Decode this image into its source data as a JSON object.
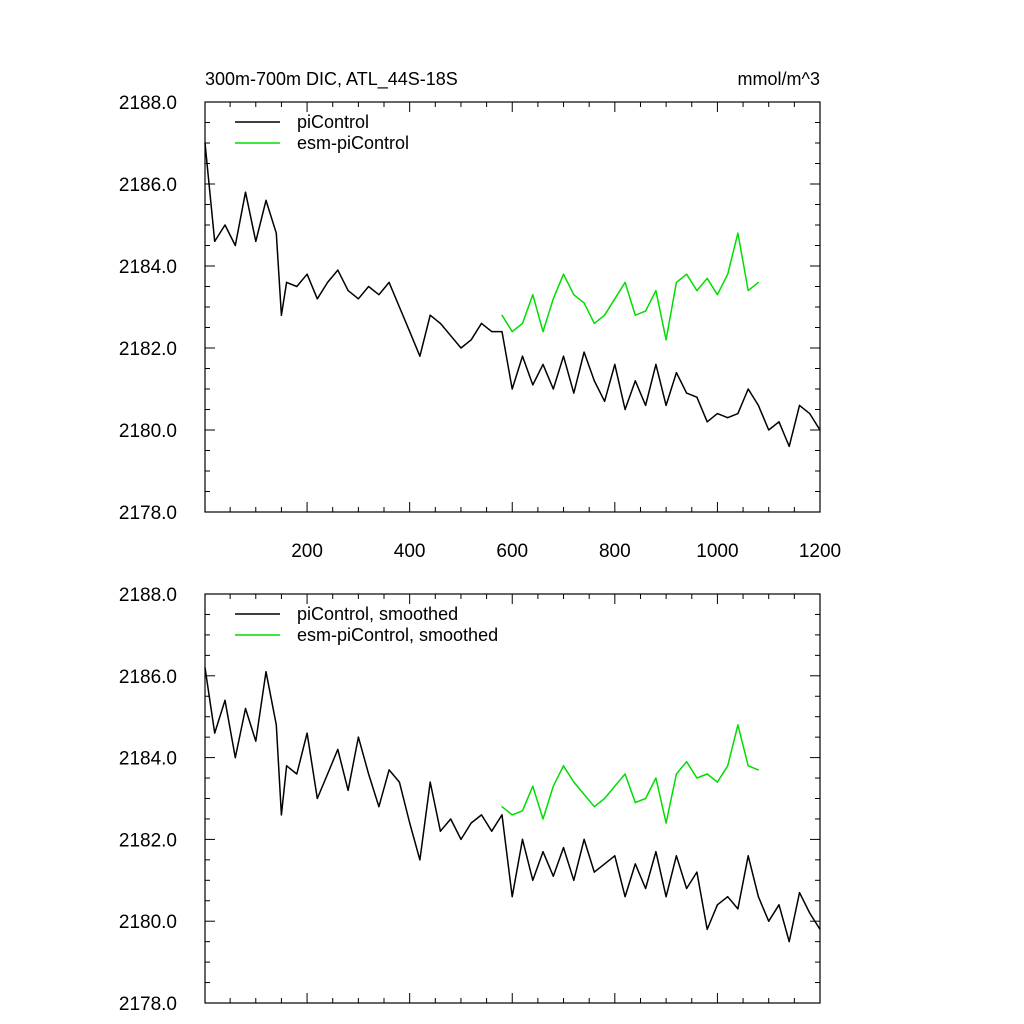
{
  "title": "300m-700m DIC, ATL_44S-18S",
  "units": "mmol/m^3",
  "colors": {
    "picontrol": "#000000",
    "esm_picontrol": "#00dd00"
  },
  "chart_data": [
    {
      "type": "line",
      "panel": "top",
      "xlim": [
        1,
        1200
      ],
      "ylim": [
        2178.0,
        2188.0
      ],
      "yticks": [
        "2188.0",
        "2186.0",
        "2184.0",
        "2182.0",
        "2180.0",
        "2178.0"
      ],
      "xticks": [
        "200",
        "400",
        "600",
        "800",
        "1000",
        "1200"
      ],
      "legend_position": "top-left",
      "series": [
        {
          "name": "piControl",
          "color": "#000000",
          "x": [
            1,
            20,
            40,
            60,
            80,
            100,
            120,
            140,
            150,
            160,
            180,
            200,
            220,
            240,
            260,
            280,
            300,
            320,
            340,
            360,
            380,
            400,
            420,
            440,
            460,
            480,
            500,
            520,
            540,
            560,
            580,
            600,
            620,
            640,
            660,
            680,
            700,
            720,
            740,
            760,
            780,
            800,
            820,
            840,
            860,
            880,
            900,
            920,
            940,
            960,
            980,
            1000,
            1020,
            1040,
            1060,
            1080,
            1100,
            1120,
            1140,
            1160,
            1180,
            1200
          ],
          "y": [
            2187.0,
            2184.6,
            2185.0,
            2184.5,
            2185.8,
            2184.6,
            2185.6,
            2184.8,
            2182.8,
            2183.6,
            2183.5,
            2183.8,
            2183.2,
            2183.6,
            2183.9,
            2183.4,
            2183.2,
            2183.5,
            2183.3,
            2183.6,
            2183.0,
            2182.4,
            2181.8,
            2182.8,
            2182.6,
            2182.3,
            2182.0,
            2182.2,
            2182.6,
            2182.4,
            2182.4,
            2181.0,
            2181.8,
            2181.1,
            2181.6,
            2181.0,
            2181.8,
            2180.9,
            2181.9,
            2181.2,
            2180.7,
            2181.6,
            2180.5,
            2181.2,
            2180.6,
            2181.6,
            2180.6,
            2181.4,
            2180.9,
            2180.8,
            2180.2,
            2180.4,
            2180.3,
            2180.4,
            2181.0,
            2180.6,
            2180.0,
            2180.2,
            2179.6,
            2180.6,
            2180.4,
            2180.0
          ]
        },
        {
          "name": "esm-piControl",
          "color": "#00dd00",
          "x": [
            580,
            600,
            620,
            640,
            660,
            680,
            700,
            720,
            740,
            760,
            780,
            800,
            820,
            840,
            860,
            880,
            900,
            920,
            940,
            960,
            980,
            1000,
            1020,
            1040,
            1060,
            1080
          ],
          "y": [
            2182.8,
            2182.4,
            2182.6,
            2183.3,
            2182.4,
            2183.2,
            2183.8,
            2183.3,
            2183.1,
            2182.6,
            2182.8,
            2183.2,
            2183.6,
            2182.8,
            2182.9,
            2183.4,
            2182.2,
            2183.6,
            2183.8,
            2183.4,
            2183.7,
            2183.3,
            2183.8,
            2184.8,
            2183.4,
            2183.6
          ]
        }
      ]
    },
    {
      "type": "line",
      "panel": "bottom",
      "xlim": [
        1,
        1200
      ],
      "ylim": [
        2178.0,
        2188.0
      ],
      "yticks": [
        "2188.0",
        "2186.0",
        "2184.0",
        "2182.0",
        "2180.0",
        "2178.0"
      ],
      "legend_position": "top-left",
      "series": [
        {
          "name": "piControl, smoothed",
          "color": "#000000",
          "x": [
            1,
            20,
            40,
            60,
            80,
            100,
            120,
            140,
            150,
            160,
            180,
            200,
            220,
            240,
            260,
            280,
            300,
            320,
            340,
            360,
            380,
            400,
            420,
            440,
            460,
            480,
            500,
            520,
            540,
            560,
            580,
            600,
            620,
            640,
            660,
            680,
            700,
            720,
            740,
            760,
            780,
            800,
            820,
            840,
            860,
            880,
            900,
            920,
            940,
            960,
            980,
            1000,
            1020,
            1040,
            1060,
            1080,
            1100,
            1120,
            1140,
            1160,
            1180,
            1200
          ],
          "y": [
            2186.2,
            2184.6,
            2185.4,
            2184.0,
            2185.2,
            2184.4,
            2186.1,
            2184.8,
            2182.6,
            2183.8,
            2183.6,
            2184.6,
            2183.0,
            2183.6,
            2184.2,
            2183.2,
            2184.5,
            2183.6,
            2182.8,
            2183.7,
            2183.4,
            2182.4,
            2181.5,
            2183.4,
            2182.2,
            2182.5,
            2182.0,
            2182.4,
            2182.6,
            2182.2,
            2182.6,
            2180.6,
            2182.0,
            2181.0,
            2181.7,
            2181.1,
            2181.8,
            2181.0,
            2182.0,
            2181.2,
            2181.4,
            2181.6,
            2180.6,
            2181.4,
            2180.8,
            2181.7,
            2180.6,
            2181.6,
            2180.8,
            2181.2,
            2179.8,
            2180.4,
            2180.6,
            2180.3,
            2181.6,
            2180.6,
            2180.0,
            2180.4,
            2179.5,
            2180.7,
            2180.2,
            2179.8
          ]
        },
        {
          "name": "esm-piControl, smoothed",
          "color": "#00dd00",
          "x": [
            580,
            600,
            620,
            640,
            660,
            680,
            700,
            720,
            740,
            760,
            780,
            800,
            820,
            840,
            860,
            880,
            900,
            920,
            940,
            960,
            980,
            1000,
            1020,
            1040,
            1060,
            1080
          ],
          "y": [
            2182.8,
            2182.6,
            2182.7,
            2183.3,
            2182.5,
            2183.3,
            2183.8,
            2183.4,
            2183.1,
            2182.8,
            2183.0,
            2183.3,
            2183.6,
            2182.9,
            2183.0,
            2183.5,
            2182.4,
            2183.6,
            2183.9,
            2183.5,
            2183.6,
            2183.4,
            2183.8,
            2184.8,
            2183.8,
            2183.7
          ]
        }
      ]
    }
  ]
}
